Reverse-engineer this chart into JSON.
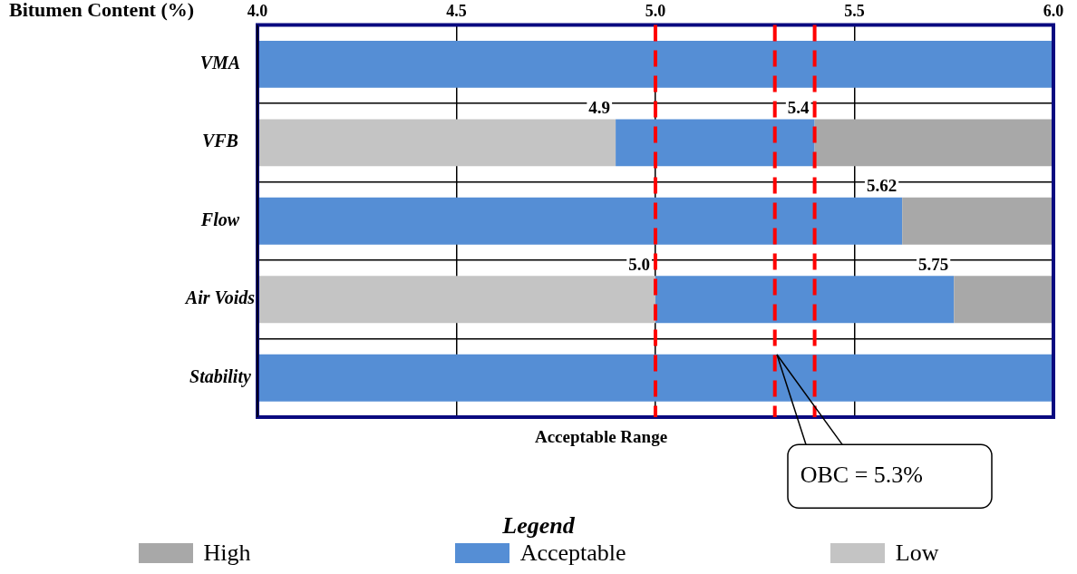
{
  "chart_data": {
    "type": "bar",
    "orientation": "horizontal",
    "xlabel": "Bitumen Content (%)",
    "categories": [
      "VMA",
      "VFB",
      "Flow",
      "Air Voids",
      "Stability"
    ],
    "series": [
      {
        "name": "High",
        "color": "#a8a8a8",
        "base": [
          null,
          5.4,
          5.62,
          5.75,
          null
        ],
        "values": [
          null,
          0.6,
          0.38,
          0.25,
          null
        ]
      },
      {
        "name": "Acceptable",
        "color": "#558ed5",
        "base": [
          4.0,
          4.9,
          4.0,
          5.0,
          4.0
        ],
        "values": [
          2.0,
          0.5,
          1.62,
          0.75,
          2.0
        ]
      },
      {
        "name": "Low",
        "color": "#c4c4c4",
        "base": [
          null,
          4.0,
          null,
          4.0,
          null
        ],
        "values": [
          null,
          0.9,
          null,
          1.0,
          null
        ]
      }
    ],
    "xlim": [
      4.0,
      6.0
    ],
    "xticks": [
      {
        "value": 4.0,
        "label": "4.0"
      },
      {
        "value": 4.5,
        "label": "4.5"
      },
      {
        "value": 5.0,
        "label": "5.0"
      },
      {
        "value": 5.5,
        "label": "5.5"
      },
      {
        "value": 6.0,
        "label": "6.0"
      }
    ],
    "grid": "x",
    "legend": "bottom",
    "legend_title": "Legend",
    "ref_lines": [
      {
        "axis": "x",
        "value": 5.0,
        "color": "#ff0000",
        "line_style": "dashed"
      },
      {
        "axis": "x",
        "value": 5.3,
        "label": "OBC = 5.3%",
        "color": "#ff0000",
        "line_style": "dashed"
      },
      {
        "axis": "x",
        "value": 5.4,
        "color": "#ff0000",
        "line_style": "dashed"
      }
    ],
    "annotations": [
      {
        "text": "4.9",
        "x": 4.9,
        "y": "VFB"
      },
      {
        "text": "5.0",
        "x": 5.0,
        "y": "Air Voids"
      },
      {
        "text": "5.4",
        "x": 5.4,
        "y": "VFB"
      },
      {
        "text": "5.62",
        "x": 5.62,
        "y": "Flow"
      },
      {
        "text": "5.75",
        "x": 5.75,
        "y": "Air Voids"
      },
      "Acceptable Range"
    ]
  }
}
